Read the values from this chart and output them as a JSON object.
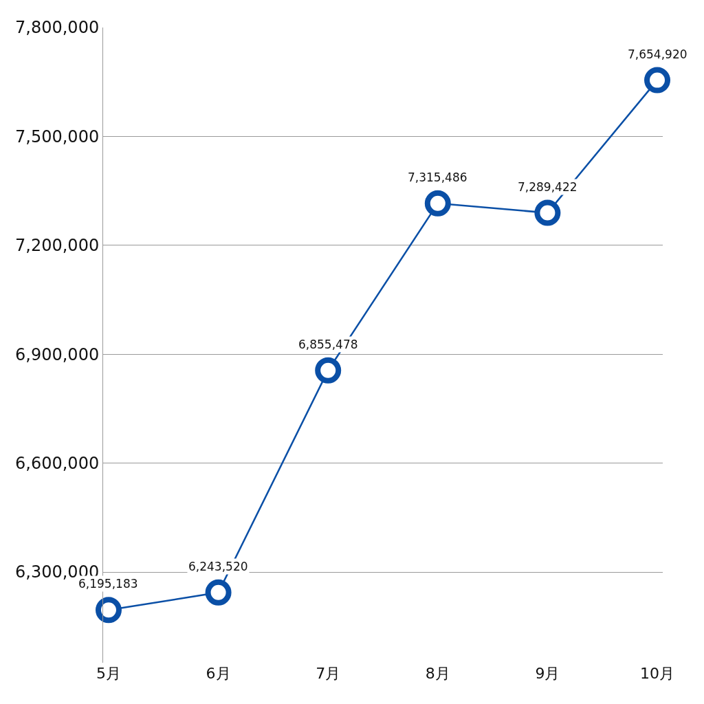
{
  "chart_data": {
    "type": "line",
    "categories": [
      "5月",
      "6月",
      "7月",
      "8月",
      "9月",
      "10月"
    ],
    "series": [
      {
        "color": "#0a4fa6",
        "values": [
          6195183,
          6243520,
          6855478,
          7315486,
          7289422,
          7654920
        ],
        "value_labels": [
          "6,195,183",
          "6,243,520",
          "6,855,478",
          "7,315,486",
          "7,289,422",
          "7,654,920"
        ]
      }
    ],
    "ylim": [
      6050000,
      7800000
    ],
    "yticks": [
      {
        "value": 6300000,
        "label": "6,300,000"
      },
      {
        "value": 6600000,
        "label": "6,600,000"
      },
      {
        "value": 6900000,
        "label": "6,900,000"
      },
      {
        "value": 7200000,
        "label": "7,200,000"
      },
      {
        "value": 7500000,
        "label": "7,500,000"
      },
      {
        "value": 7800000,
        "label": "7,800,000"
      }
    ],
    "grid": "y",
    "marker": "circle",
    "line_style": "solid"
  }
}
